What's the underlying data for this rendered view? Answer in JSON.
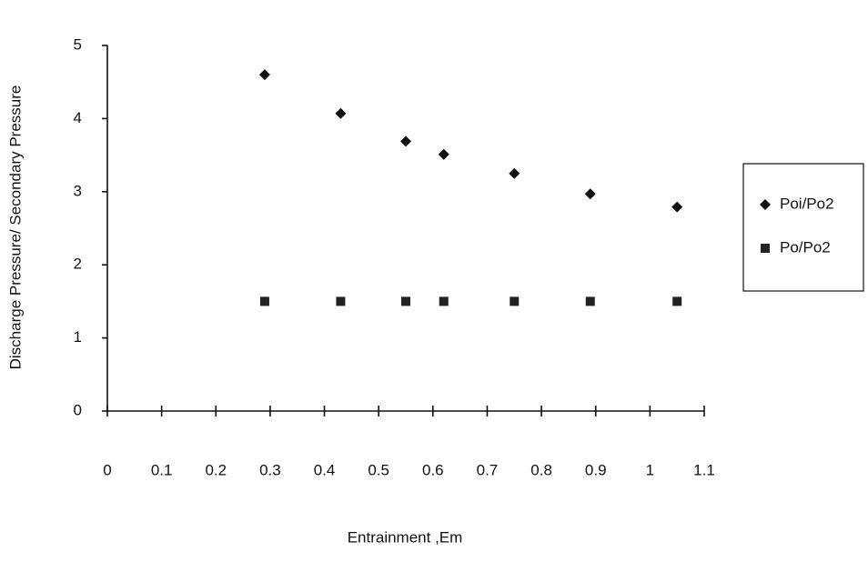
{
  "chart_data": {
    "type": "scatter",
    "xlabel": "Entrainment ,Em",
    "ylabel": "Discharge Pressure/ Secondary Pressure",
    "x": [
      0.29,
      0.43,
      0.55,
      0.62,
      0.75,
      0.89,
      1.05
    ],
    "series": [
      {
        "name": "Poi/Po2",
        "color": "#111111",
        "marker": "diamond",
        "values": [
          4.6,
          4.07,
          3.69,
          3.51,
          3.25,
          2.97,
          2.79
        ]
      },
      {
        "name": "Po/Po2",
        "color": "#222222",
        "marker": "square",
        "values": [
          1.5,
          1.5,
          1.5,
          1.5,
          1.5,
          1.5,
          1.5
        ]
      }
    ],
    "xlim": [
      0,
      1.1
    ],
    "xticks": [
      0,
      0.1,
      0.2,
      0.3,
      0.4,
      0.5,
      0.6,
      0.7,
      0.8,
      0.9,
      1,
      1.1
    ],
    "ylim": [
      0,
      5
    ],
    "yticks": [
      0,
      1,
      2,
      3,
      4,
      5
    ],
    "grid": false,
    "legend": "right"
  }
}
